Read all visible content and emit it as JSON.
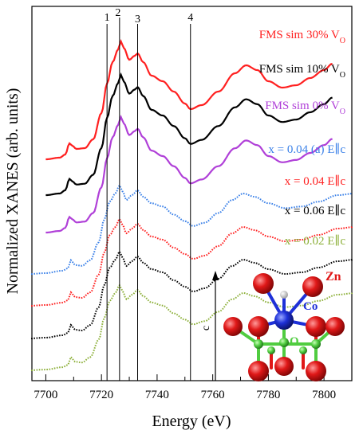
{
  "chart_data": {
    "type": "line",
    "xlabel": "Energy (eV)",
    "ylabel": "Normalized XANES (arb. units)",
    "xlim": [
      7695,
      7810
    ],
    "xticks": [
      "7700",
      "7720",
      "7740",
      "7760",
      "7780",
      "7800"
    ],
    "grid": false,
    "legend": "inline labels at right end of curves",
    "vertical_markers": [
      {
        "label": "1",
        "x": 7722
      },
      {
        "label": "2",
        "x": 7726.5
      },
      {
        "label": "3",
        "x": 7733
      },
      {
        "label": "4",
        "x": 7752
      }
    ],
    "series": [
      {
        "name": "FMS sim 30% V",
        "name_subscript": "O",
        "color": "#ff2020",
        "style": "solid"
      },
      {
        "name": "FMS sim 10% V",
        "name_subscript": "O",
        "color": "#000000",
        "style": "solid"
      },
      {
        "name": "FMS sim 0% V",
        "name_subscript": "O",
        "color": "#b040d8",
        "style": "solid"
      },
      {
        "name": "x = 0.04 (a) E∥c",
        "color": "#3a80e8",
        "style": "dotted"
      },
      {
        "name": "x = 0.04  E∥c",
        "color": "#ff2020",
        "style": "dotted"
      },
      {
        "name": "x = 0.06  E∥c",
        "color": "#000000",
        "style": "dotted"
      },
      {
        "name": "x = 0.02  E∥c",
        "color": "#8db03a",
        "style": "dotted"
      }
    ]
  },
  "inset": {
    "axis_label": "c",
    "atom_labels": {
      "zn": "Zn",
      "co": "Co",
      "o": "O"
    },
    "colors": {
      "zn": "#e01818",
      "co": "#1e30d8",
      "o": "#50cc40"
    }
  }
}
